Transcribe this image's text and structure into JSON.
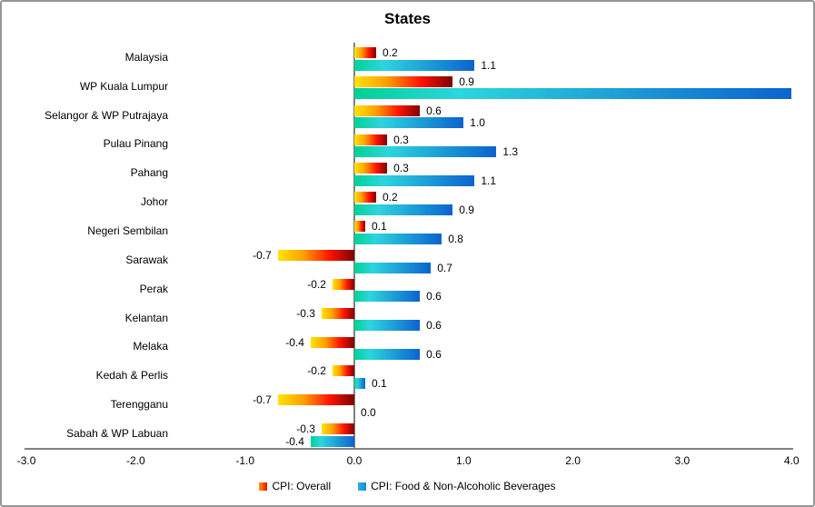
{
  "title": "States",
  "chart_data": {
    "type": "bar",
    "orientation": "horizontal",
    "title": "States",
    "xlabel": "",
    "ylabel": "",
    "xlim": [
      -3.0,
      4.0
    ],
    "grid": false,
    "legend_position": "bottom",
    "categories": [
      "Malaysia",
      "WP Kuala Lumpur",
      "Selangor & WP Putrajaya",
      "Pulau Pinang",
      "Pahang",
      "Johor",
      "Negeri Sembilan",
      "Sarawak",
      "Perak",
      "Kelantan",
      "Melaka",
      "Kedah & Perlis",
      "Terengganu",
      "Sabah & WP Labuan"
    ],
    "series": [
      {
        "name": "CPI: Overall",
        "values": [
          0.2,
          0.9,
          0.6,
          0.3,
          0.3,
          0.2,
          0.1,
          -0.7,
          -0.2,
          -0.3,
          -0.4,
          -0.2,
          -0.7,
          -0.3
        ],
        "data_labels": [
          "0.2",
          "0.9",
          "0.6",
          "0.3",
          "0.3",
          "0.2",
          "0.1",
          "-0.7",
          "-0.2",
          "-0.3",
          "-0.4",
          "-0.2",
          "-0.7",
          "-0.3"
        ],
        "gradient_colors": [
          "#ffe400",
          "#ffa000",
          "#ff1200",
          "#7c0300"
        ]
      },
      {
        "name": "CPI: Food & Non-Alcoholic Beverages",
        "values": [
          1.1,
          4.0,
          1.0,
          1.3,
          1.1,
          0.9,
          0.8,
          0.7,
          0.6,
          0.6,
          0.6,
          0.1,
          0.0,
          -0.4
        ],
        "data_labels": [
          "1.1",
          "",
          "1.0",
          "1.3",
          "1.1",
          "0.9",
          "0.8",
          "0.7",
          "0.6",
          "0.6",
          "0.6",
          "0.1",
          "0.0",
          "-0.4"
        ],
        "gradient_colors": [
          "#00d294",
          "#2dd5de",
          "#0b63cf"
        ]
      }
    ],
    "x_ticks": [
      {
        "value": -3,
        "label": "-3.0"
      },
      {
        "value": -2,
        "label": "-2.0"
      },
      {
        "value": -1,
        "label": "-1.0"
      },
      {
        "value": 0,
        "label": "0.0"
      },
      {
        "value": 1,
        "label": "1.0"
      },
      {
        "value": 2,
        "label": "2.0"
      },
      {
        "value": 3,
        "label": "3.0"
      },
      {
        "value": 4,
        "label": "4.0"
      }
    ]
  },
  "colors": {
    "axis": "#808080",
    "border": "#969696",
    "text": "#000000",
    "background": "#ffffff"
  }
}
